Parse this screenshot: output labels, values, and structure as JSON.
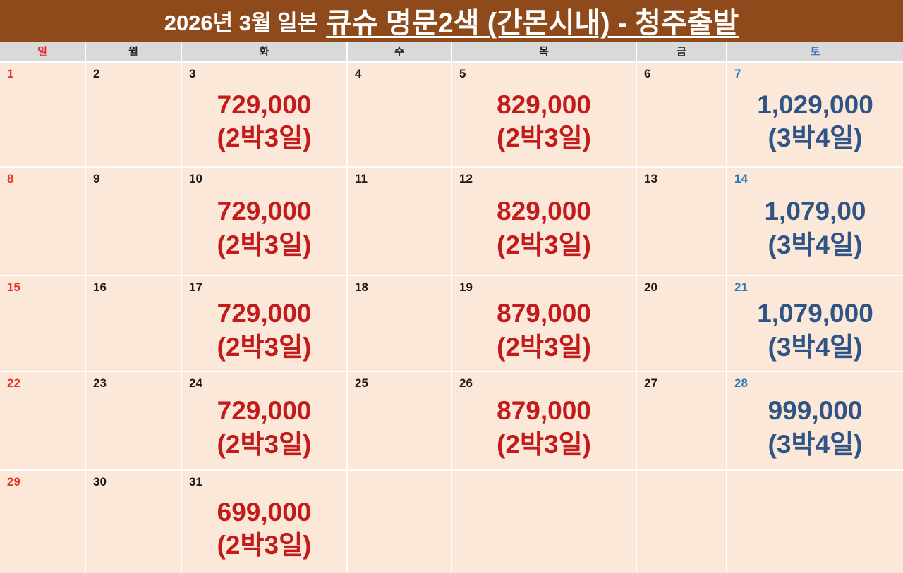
{
  "title": {
    "prefix": "2026년 3월 일본",
    "main": "큐슈 명문2색 (간몬시내) - 청주출발"
  },
  "day_headers": [
    {
      "label": "일",
      "color": "#E7282B"
    },
    {
      "label": "월",
      "color": "#1A1A1A"
    },
    {
      "label": "화",
      "color": "#1A1A1A"
    },
    {
      "label": "수",
      "color": "#1A1A1A"
    },
    {
      "label": "목",
      "color": "#1A1A1A"
    },
    {
      "label": "금",
      "color": "#1A1A1A"
    },
    {
      "label": "토",
      "color": "#4472C4"
    }
  ],
  "colors": {
    "header_bg": "#8F4A1B",
    "dow_bg": "#D9D9D9",
    "cell_bg": "#FCE8D8",
    "sunday": "#E7342B",
    "saturday": "#2679BE",
    "weekday": "#1A1A1A",
    "price_red": "#C11B1B",
    "price_navy": "#2E5585"
  },
  "calendar": {
    "weeks": [
      [
        {
          "day": "1",
          "day_color": "sunday"
        },
        {
          "day": "2"
        },
        {
          "day": "3",
          "price": "729,000",
          "duration": "(2박3일)",
          "price_color": "price_red"
        },
        {
          "day": "4"
        },
        {
          "day": "5",
          "price": "829,000",
          "duration": "(2박3일)",
          "price_color": "price_red"
        },
        {
          "day": "6"
        },
        {
          "day": "7",
          "day_color": "saturday",
          "price": "1,029,000",
          "duration": "(3박4일)",
          "price_color": "price_navy"
        }
      ],
      [
        {
          "day": "8",
          "day_color": "sunday"
        },
        {
          "day": "9"
        },
        {
          "day": "10",
          "price": "729,000",
          "duration": "(2박3일)",
          "price_color": "price_red"
        },
        {
          "day": "11"
        },
        {
          "day": "12",
          "price": "829,000",
          "duration": "(2박3일)",
          "price_color": "price_red"
        },
        {
          "day": "13"
        },
        {
          "day": "14",
          "day_color": "saturday",
          "price": "1,079,00",
          "duration": "(3박4일)",
          "price_color": "price_navy"
        }
      ],
      [
        {
          "day": "15",
          "day_color": "sunday"
        },
        {
          "day": "16"
        },
        {
          "day": "17",
          "price": "729,000",
          "duration": "(2박3일)",
          "price_color": "price_red"
        },
        {
          "day": "18"
        },
        {
          "day": "19",
          "price": "879,000",
          "duration": "(2박3일)",
          "price_color": "price_red"
        },
        {
          "day": "20"
        },
        {
          "day": "21",
          "day_color": "saturday",
          "price": "1,079,000",
          "duration": "(3박4일)",
          "price_color": "price_navy"
        }
      ],
      [
        {
          "day": "22",
          "day_color": "sunday"
        },
        {
          "day": "23"
        },
        {
          "day": "24",
          "price": "729,000",
          "duration": "(2박3일)",
          "price_color": "price_red"
        },
        {
          "day": "25"
        },
        {
          "day": "26",
          "price": "879,000",
          "duration": "(2박3일)",
          "price_color": "price_red"
        },
        {
          "day": "27"
        },
        {
          "day": "28",
          "day_color": "saturday",
          "price": "999,000",
          "duration": "(3박4일)",
          "price_color": "price_navy"
        }
      ],
      [
        {
          "day": "29",
          "day_color": "sunday"
        },
        {
          "day": "30"
        },
        {
          "day": "31",
          "price": "699,000",
          "duration": "(2박3일)",
          "price_color": "price_red"
        },
        {},
        {},
        {},
        {}
      ]
    ]
  }
}
